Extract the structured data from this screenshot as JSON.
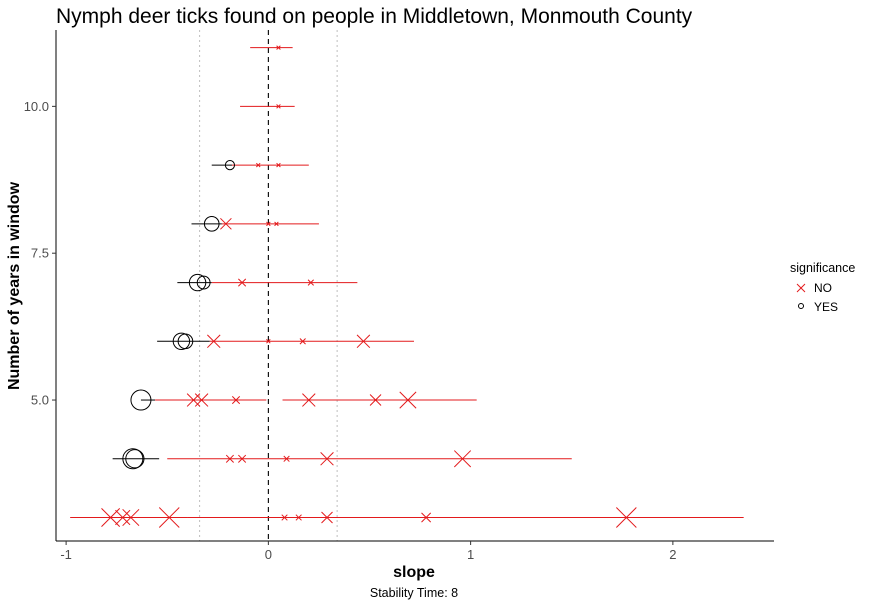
{
  "chart_data": {
    "type": "scatter",
    "title": "Nymph deer ticks found on people in Middletown, Monmouth County",
    "xlabel": "slope",
    "ylabel": "Number of years in window",
    "caption": "Stability Time: 8",
    "xlim": [
      -1.05,
      2.5
    ],
    "ylim": [
      2.6,
      11.3
    ],
    "x_ticks": [
      -1,
      0,
      1,
      2
    ],
    "x_tick_labels": [
      "-1",
      "0",
      "1",
      "2"
    ],
    "y_ticks": [
      5.0,
      7.5,
      10.0
    ],
    "y_tick_labels": [
      "5.0",
      "7.5",
      "10.0"
    ],
    "grid": false,
    "reference_lines": {
      "zero": 0,
      "dotted": [
        -0.34,
        0.34
      ]
    },
    "legend": {
      "title": "significance",
      "position": "right",
      "entries": [
        {
          "label": "NO",
          "symbol": "x",
          "color": "#e31a1c"
        },
        {
          "label": "YES",
          "symbol": "o",
          "color": "#000000"
        }
      ]
    },
    "colors": {
      "NO": "#e31a1c",
      "YES": "#000000"
    },
    "series": [
      {
        "window": 3,
        "points": [
          {
            "x": -0.78,
            "lo": -0.98,
            "hi": -0.4,
            "sig": "NO",
            "size": 9
          },
          {
            "x": -0.72,
            "lo": -0.98,
            "hi": -0.4,
            "sig": "NO",
            "size": 7
          },
          {
            "x": -0.68,
            "lo": -0.98,
            "hi": -0.4,
            "sig": "NO",
            "size": 8
          },
          {
            "x": -0.49,
            "lo": -0.98,
            "hi": -0.4,
            "sig": "NO",
            "size": 10
          },
          {
            "x": 0.08,
            "lo": -0.4,
            "hi": 2.35,
            "sig": "NO",
            "size": 2
          },
          {
            "x": 0.15,
            "lo": -0.4,
            "hi": 2.35,
            "sig": "NO",
            "size": 2
          },
          {
            "x": 0.29,
            "lo": -0.4,
            "hi": 2.35,
            "sig": "NO",
            "size": 5
          },
          {
            "x": 0.78,
            "lo": -0.4,
            "hi": 2.35,
            "sig": "NO",
            "size": 4
          },
          {
            "x": 1.77,
            "lo": -0.4,
            "hi": 2.35,
            "sig": "NO",
            "size": 10
          }
        ]
      },
      {
        "window": 4,
        "points": [
          {
            "x": -0.67,
            "lo": -0.77,
            "hi": -0.54,
            "sig": "YES",
            "size": 10
          },
          {
            "x": -0.66,
            "lo": -0.77,
            "hi": -0.54,
            "sig": "YES",
            "size": 9
          },
          {
            "x": -0.19,
            "lo": -0.5,
            "hi": 1.5,
            "sig": "NO",
            "size": 3
          },
          {
            "x": -0.13,
            "lo": -0.5,
            "hi": 1.5,
            "sig": "NO",
            "size": 3
          },
          {
            "x": 0.09,
            "lo": -0.5,
            "hi": 1.5,
            "sig": "NO",
            "size": 2
          },
          {
            "x": 0.29,
            "lo": -0.5,
            "hi": 1.5,
            "sig": "NO",
            "size": 6
          },
          {
            "x": 0.96,
            "lo": -0.5,
            "hi": 1.5,
            "sig": "NO",
            "size": 8
          }
        ]
      },
      {
        "window": 5,
        "points": [
          {
            "x": -0.63,
            "lo": -0.63,
            "hi": -0.56,
            "sig": "YES",
            "size": 10
          },
          {
            "x": -0.37,
            "lo": -0.56,
            "hi": -0.01,
            "sig": "NO",
            "size": 6
          },
          {
            "x": -0.33,
            "lo": -0.56,
            "hi": -0.01,
            "sig": "NO",
            "size": 6
          },
          {
            "x": -0.16,
            "lo": -0.56,
            "hi": -0.01,
            "sig": "NO",
            "size": 3
          },
          {
            "x": 0.2,
            "lo": 0.07,
            "hi": 1.03,
            "sig": "NO",
            "size": 6
          },
          {
            "x": 0.53,
            "lo": 0.07,
            "hi": 1.03,
            "sig": "NO",
            "size": 5
          },
          {
            "x": 0.69,
            "lo": 0.07,
            "hi": 1.03,
            "sig": "NO",
            "size": 8
          }
        ]
      },
      {
        "window": 6,
        "points": [
          {
            "x": -0.43,
            "lo": -0.55,
            "hi": -0.29,
            "sig": "YES",
            "size": 8
          },
          {
            "x": -0.41,
            "lo": -0.55,
            "hi": -0.29,
            "sig": "YES",
            "size": 7
          },
          {
            "x": -0.27,
            "lo": -0.29,
            "hi": 0.72,
            "sig": "NO",
            "size": 6
          },
          {
            "x": 0.0,
            "lo": -0.29,
            "hi": 0.72,
            "sig": "NO",
            "size": 1
          },
          {
            "x": 0.17,
            "lo": -0.29,
            "hi": 0.72,
            "sig": "NO",
            "size": 2
          },
          {
            "x": 0.47,
            "lo": -0.29,
            "hi": 0.72,
            "sig": "NO",
            "size": 6
          }
        ]
      },
      {
        "window": 7,
        "points": [
          {
            "x": -0.35,
            "lo": -0.45,
            "hi": -0.28,
            "sig": "YES",
            "size": 8
          },
          {
            "x": -0.32,
            "lo": -0.45,
            "hi": -0.28,
            "sig": "YES",
            "size": 6
          },
          {
            "x": -0.13,
            "lo": -0.28,
            "hi": 0.44,
            "sig": "NO",
            "size": 3
          },
          {
            "x": 0.21,
            "lo": -0.28,
            "hi": 0.44,
            "sig": "NO",
            "size": 2
          }
        ]
      },
      {
        "window": 8,
        "points": [
          {
            "x": -0.28,
            "lo": -0.38,
            "hi": -0.23,
            "sig": "YES",
            "size": 7
          },
          {
            "x": -0.21,
            "lo": -0.23,
            "hi": 0.25,
            "sig": "NO",
            "size": 5
          },
          {
            "x": 0.0,
            "lo": -0.23,
            "hi": 0.25,
            "sig": "NO",
            "size": 1
          },
          {
            "x": 0.04,
            "lo": -0.23,
            "hi": 0.25,
            "sig": "NO",
            "size": 1
          }
        ]
      },
      {
        "window": 9,
        "points": [
          {
            "x": -0.19,
            "lo": -0.28,
            "hi": -0.18,
            "sig": "YES",
            "size": 4
          },
          {
            "x": -0.05,
            "lo": -0.18,
            "hi": 0.2,
            "sig": "NO",
            "size": 1
          },
          {
            "x": 0.05,
            "lo": -0.18,
            "hi": 0.2,
            "sig": "NO",
            "size": 1
          }
        ]
      },
      {
        "window": 10,
        "points": [
          {
            "x": 0.05,
            "lo": -0.14,
            "hi": 0.13,
            "sig": "NO",
            "size": 1
          }
        ]
      },
      {
        "window": 11,
        "points": [
          {
            "x": 0.05,
            "lo": -0.09,
            "hi": 0.12,
            "sig": "NO",
            "size": 1
          }
        ]
      }
    ]
  }
}
